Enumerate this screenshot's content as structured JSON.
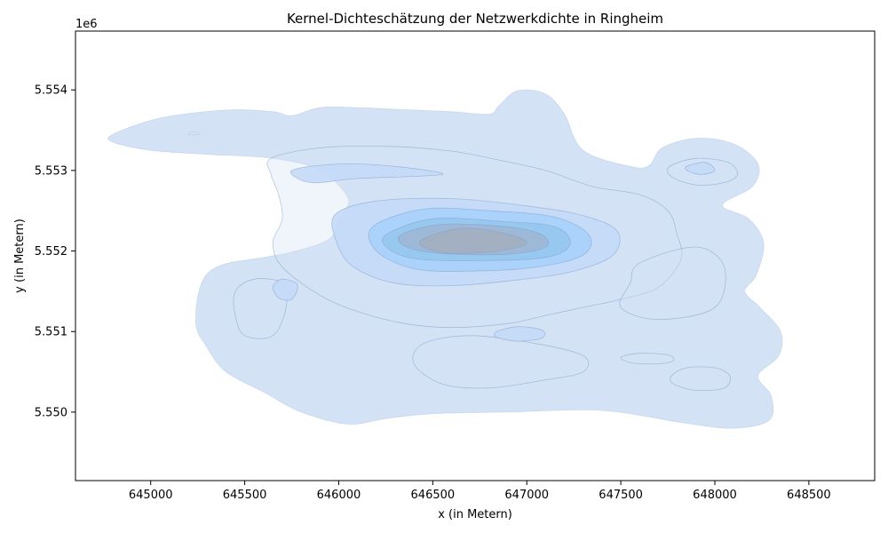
{
  "chart_data": {
    "type": "heatmap",
    "subtype": "kde-contour",
    "title": "Kernel-Dichteschätzung der Netzwerkdichte in Ringheim",
    "xlabel": "x (in Metern)",
    "ylabel": "y (in Metern)",
    "y_offset_label": "1e6",
    "xlim": [
      644600,
      648850
    ],
    "ylim": [
      5549150,
      5554730
    ],
    "x_ticks": [
      645000,
      645500,
      646000,
      646500,
      647000,
      647500,
      648000,
      648500
    ],
    "x_tick_labels": [
      "645000",
      "645500",
      "646000",
      "646500",
      "647000",
      "647500",
      "648000",
      "648500"
    ],
    "y_ticks": [
      5550000,
      5551000,
      5552000,
      5553000,
      5554000
    ],
    "y_tick_labels": [
      "5.550",
      "5.551",
      "5.552",
      "5.553",
      "5.554"
    ],
    "grid": false,
    "level_colors": [
      "#d4e2f6",
      "#c4daf7",
      "#a6d0fb",
      "#96c6ee",
      "#9db7d4",
      "#a3afbf"
    ],
    "line_color": "#7f9fc6",
    "levels": [
      {
        "level": 1,
        "paths": [
          [
            [
              644800,
              5553450
            ],
            [
              645050,
              5553650
            ],
            [
              645400,
              5553750
            ],
            [
              645650,
              5553730
            ],
            [
              645750,
              5553680
            ],
            [
              645900,
              5553780
            ],
            [
              646100,
              5553780
            ],
            [
              646300,
              5553760
            ],
            [
              646600,
              5553730
            ],
            [
              646800,
              5553700
            ],
            [
              646850,
              5553800
            ],
            [
              646950,
              5553990
            ],
            [
              647100,
              5553950
            ],
            [
              647200,
              5553700
            ],
            [
              647300,
              5553250
            ],
            [
              647550,
              5553050
            ],
            [
              647650,
              5553060
            ],
            [
              647720,
              5553280
            ],
            [
              647900,
              5553400
            ],
            [
              648100,
              5553330
            ],
            [
              648230,
              5553080
            ],
            [
              648200,
              5552800
            ],
            [
              648040,
              5552570
            ],
            [
              648180,
              5552400
            ],
            [
              648260,
              5552100
            ],
            [
              648220,
              5551700
            ],
            [
              648160,
              5551500
            ],
            [
              648240,
              5551300
            ],
            [
              648350,
              5551000
            ],
            [
              648340,
              5550700
            ],
            [
              648230,
              5550450
            ],
            [
              648300,
              5550200
            ],
            [
              648290,
              5549900
            ],
            [
              648100,
              5549800
            ],
            [
              647850,
              5549860
            ],
            [
              647400,
              5550020
            ],
            [
              646900,
              5550000
            ],
            [
              646500,
              5549980
            ],
            [
              646250,
              5549920
            ],
            [
              646050,
              5549850
            ],
            [
              645800,
              5550000
            ],
            [
              645600,
              5550250
            ],
            [
              645400,
              5550500
            ],
            [
              645300,
              5550800
            ],
            [
              645240,
              5551100
            ],
            [
              645270,
              5551600
            ],
            [
              645370,
              5551820
            ],
            [
              645600,
              5551920
            ],
            [
              645770,
              5552000
            ],
            [
              645950,
              5552150
            ],
            [
              646000,
              5552400
            ],
            [
              646050,
              5552650
            ],
            [
              645900,
              5553000
            ],
            [
              645650,
              5553150
            ],
            [
              645300,
              5553200
            ],
            [
              645000,
              5553250
            ],
            [
              644800,
              5553350
            ]
          ],
          [
            [
              645220,
              5553480
            ],
            [
              645260,
              5553460
            ],
            [
              645240,
              5553440
            ],
            [
              645200,
              5553450
            ]
          ]
        ]
      },
      {
        "level": 1.5,
        "paths": [
          [
            [
              645640,
              5553150
            ],
            [
              645900,
              5553280
            ],
            [
              646250,
              5553300
            ],
            [
              646600,
              5553240
            ],
            [
              646850,
              5553130
            ],
            [
              647100,
              5553000
            ],
            [
              647350,
              5552800
            ],
            [
              647600,
              5552700
            ],
            [
              647750,
              5552500
            ],
            [
              647800,
              5552200
            ],
            [
              647820,
              5551900
            ],
            [
              647700,
              5551550
            ],
            [
              647500,
              5551400
            ],
            [
              647300,
              5551300
            ],
            [
              647100,
              5551200
            ],
            [
              646900,
              5551100
            ],
            [
              646600,
              5551050
            ],
            [
              646350,
              5551100
            ],
            [
              646100,
              5551250
            ],
            [
              645900,
              5551450
            ],
            [
              645700,
              5551800
            ],
            [
              645650,
              5552100
            ],
            [
              645700,
              5552400
            ],
            [
              645680,
              5552700
            ],
            [
              645640,
              5552950
            ]
          ],
          [
            [
              645450,
              5551500
            ],
            [
              645550,
              5551650
            ],
            [
              645700,
              5551600
            ],
            [
              645720,
              5551300
            ],
            [
              645650,
              5550950
            ],
            [
              645500,
              5550950
            ],
            [
              645450,
              5551200
            ]
          ],
          [
            [
              646450,
              5550850
            ],
            [
              646700,
              5550950
            ],
            [
              647050,
              5550850
            ],
            [
              647300,
              5550700
            ],
            [
              647300,
              5550500
            ],
            [
              647100,
              5550400
            ],
            [
              646800,
              5550300
            ],
            [
              646550,
              5550350
            ],
            [
              646400,
              5550600
            ]
          ],
          [
            [
              647770,
              5550450
            ],
            [
              647850,
              5550550
            ],
            [
              648000,
              5550550
            ],
            [
              648080,
              5550450
            ],
            [
              648050,
              5550300
            ],
            [
              647900,
              5550270
            ],
            [
              647780,
              5550350
            ]
          ],
          [
            [
              647500,
              5550680
            ],
            [
              647600,
              5550730
            ],
            [
              647750,
              5550710
            ],
            [
              647780,
              5550640
            ],
            [
              647700,
              5550600
            ],
            [
              647560,
              5550610
            ]
          ],
          [
            [
              647760,
              5553050
            ],
            [
              647900,
              5553150
            ],
            [
              648070,
              5553100
            ],
            [
              648120,
              5552950
            ],
            [
              648050,
              5552850
            ],
            [
              647900,
              5552820
            ],
            [
              647770,
              5552920
            ]
          ],
          [
            [
              647600,
              5551850
            ],
            [
              647900,
              5552050
            ],
            [
              648050,
              5551800
            ],
            [
              648000,
              5551300
            ],
            [
              647700,
              5551150
            ],
            [
              647500,
              5551300
            ],
            [
              647550,
              5551600
            ]
          ]
        ]
      },
      {
        "level": 2,
        "paths": [
          [
            [
              645980,
              5552450
            ],
            [
              646200,
              5552620
            ],
            [
              646600,
              5552650
            ],
            [
              647000,
              5552560
            ],
            [
              647300,
              5552440
            ],
            [
              647480,
              5552250
            ],
            [
              647460,
              5551950
            ],
            [
              647250,
              5551750
            ],
            [
              646950,
              5551640
            ],
            [
              646600,
              5551570
            ],
            [
              646300,
              5551600
            ],
            [
              646080,
              5551800
            ],
            [
              645990,
              5552100
            ]
          ],
          [
            [
              645750,
              5553000
            ],
            [
              646000,
              5553080
            ],
            [
              646300,
              5553050
            ],
            [
              646550,
              5552950
            ],
            [
              646100,
              5552900
            ],
            [
              645850,
              5552850
            ]
          ],
          [
            [
              645650,
              5551560
            ],
            [
              645700,
              5551650
            ],
            [
              645780,
              5551580
            ],
            [
              645750,
              5551400
            ],
            [
              645680,
              5551420
            ]
          ],
          [
            [
              647850,
              5553050
            ],
            [
              647950,
              5553100
            ],
            [
              648000,
              5553000
            ],
            [
              647930,
              5552950
            ],
            [
              647860,
              5552990
            ]
          ],
          [
            [
              646840,
              5551000
            ],
            [
              646950,
              5551060
            ],
            [
              647080,
              5551020
            ],
            [
              647080,
              5550920
            ],
            [
              646950,
              5550880
            ],
            [
              646840,
              5550930
            ]
          ]
        ]
      },
      {
        "level": 3,
        "paths": [
          [
            [
              646180,
              5552300
            ],
            [
              646450,
              5552520
            ],
            [
              646800,
              5552500
            ],
            [
              647150,
              5552420
            ],
            [
              647330,
              5552200
            ],
            [
              647300,
              5551950
            ],
            [
              647050,
              5551800
            ],
            [
              646700,
              5551750
            ],
            [
              646400,
              5551780
            ],
            [
              646200,
              5552000
            ]
          ]
        ]
      },
      {
        "level": 4,
        "paths": [
          [
            [
              646250,
              5552200
            ],
            [
              646500,
              5552400
            ],
            [
              646850,
              5552370
            ],
            [
              647150,
              5552300
            ],
            [
              647230,
              5552080
            ],
            [
              647100,
              5551920
            ],
            [
              646750,
              5551880
            ],
            [
              646420,
              5551900
            ],
            [
              646270,
              5552020
            ]
          ]
        ]
      },
      {
        "level": 5,
        "paths": [
          [
            [
              646330,
              5552200
            ],
            [
              646550,
              5552330
            ],
            [
              646900,
              5552300
            ],
            [
              647080,
              5552200
            ],
            [
              647100,
              5552050
            ],
            [
              646900,
              5551960
            ],
            [
              646550,
              5551970
            ],
            [
              646360,
              5552050
            ]
          ]
        ]
      },
      {
        "level": 6,
        "paths": [
          [
            [
              646450,
              5552150
            ],
            [
              646650,
              5552280
            ],
            [
              646880,
              5552220
            ],
            [
              647000,
              5552100
            ],
            [
              646850,
              5552000
            ],
            [
              646600,
              5551970
            ],
            [
              646450,
              5552050
            ]
          ]
        ]
      }
    ]
  }
}
